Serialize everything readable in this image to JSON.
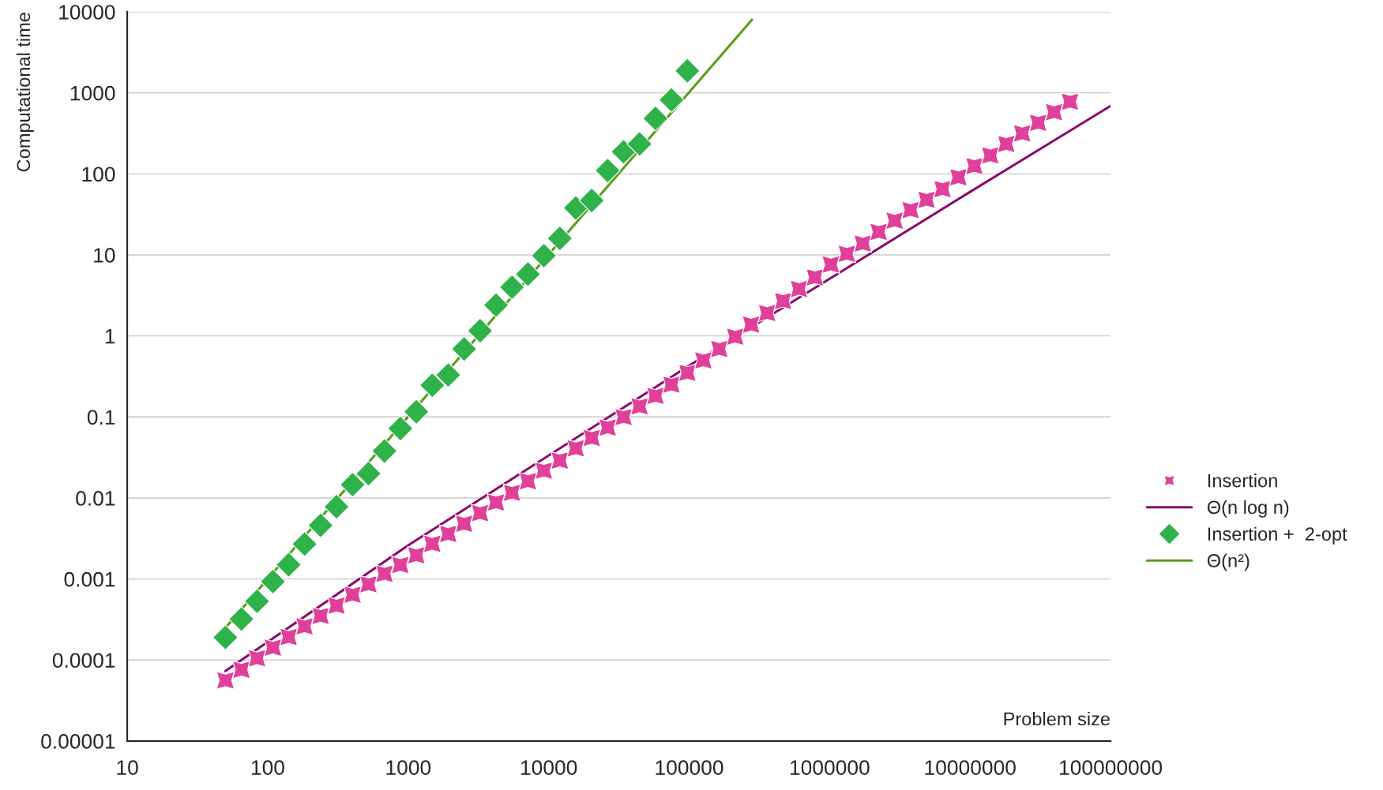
{
  "chart_data": {
    "type": "scatter",
    "xlabel": "Problem size",
    "ylabel": "Computational time",
    "log": "xy",
    "grid": "y",
    "legend": "right",
    "xlim": [
      10,
      100000000
    ],
    "ylim": [
      1e-05,
      10000
    ],
    "xticks": [
      10,
      100,
      1000,
      10000,
      100000,
      1000000,
      10000000,
      100000000
    ],
    "yticks": [
      {
        "value": 1e-05,
        "label": "0.00001"
      },
      {
        "value": 0.0001,
        "label": "0.0001"
      },
      {
        "value": 0.001,
        "label": "0.001"
      },
      {
        "value": 0.01,
        "label": "0.01"
      },
      {
        "value": 0.1,
        "label": "0.1"
      },
      1,
      10,
      100,
      1000,
      10000
    ],
    "series": [
      {
        "name": "Insertion",
        "marker": "star",
        "color": "#e0409a",
        "x": [
          50,
          65,
          84,
          109,
          141,
          183,
          238,
          309,
          402,
          522,
          678,
          880,
          1143,
          1484,
          1928,
          2503,
          3251,
          4222,
          5483,
          7120,
          9247,
          12010,
          15600,
          20250,
          26300,
          34160,
          44360,
          57610,
          74820,
          97160,
          126200,
          163900,
          212800,
          276400,
          358900,
          466100,
          605300,
          786100,
          1021000,
          1326000,
          1722000,
          2236000,
          2904000,
          3771000,
          4898000,
          6361000,
          8260000,
          10730000,
          13930000,
          18090000,
          23500000,
          30510000,
          39630000,
          51460000
        ],
        "values": [
          5.6e-05,
          7.6e-05,
          0.000105,
          0.000142,
          0.000192,
          0.00026,
          0.00035,
          0.00047,
          0.00064,
          0.00086,
          0.00116,
          0.00149,
          0.00196,
          0.00272,
          0.0036,
          0.0048,
          0.0065,
          0.0088,
          0.0116,
          0.0161,
          0.0217,
          0.029,
          0.041,
          0.055,
          0.074,
          0.1,
          0.135,
          0.182,
          0.25,
          0.35,
          0.5,
          0.69,
          0.98,
          1.38,
          1.92,
          2.7,
          3.8,
          5.3,
          7.6,
          10.3,
          13.8,
          19.2,
          26.5,
          35.8,
          48,
          65,
          91,
          125,
          169,
          234,
          316,
          427,
          577,
          778
        ]
      },
      {
        "name": "Θ(n log n)",
        "type": "line",
        "line_style": "solid",
        "color": "#8b0a6e",
        "x": [
          50,
          1000,
          100000,
          10000000,
          100000000
        ],
        "values": [
          7.3e-05,
          0.0026,
          0.43,
          60,
          690
        ]
      },
      {
        "name": "Insertion +  2-opt",
        "marker": "diamond",
        "color": "#2fb24a",
        "x": [
          50,
          65,
          84,
          109,
          141,
          183,
          238,
          309,
          402,
          522,
          678,
          880,
          1143,
          1484,
          1928,
          2503,
          3251,
          4222,
          5483,
          7120,
          9247,
          12010,
          15600,
          20250,
          26300,
          34160,
          44360,
          57610,
          74820,
          97160
        ],
        "values": [
          0.00019,
          0.00032,
          0.00053,
          0.00093,
          0.0015,
          0.0027,
          0.0046,
          0.0078,
          0.0146,
          0.02,
          0.038,
          0.072,
          0.116,
          0.246,
          0.33,
          0.69,
          1.16,
          2.4,
          4,
          5.8,
          9.8,
          16,
          38,
          47,
          110,
          187,
          234,
          484,
          819,
          1870
        ]
      },
      {
        "name": "Θ(n²)",
        "type": "line",
        "line_style": "solid",
        "color": "#5a9e1a",
        "x": [
          50,
          280000
        ],
        "values": [
          0.00025,
          8000
        ]
      }
    ]
  }
}
